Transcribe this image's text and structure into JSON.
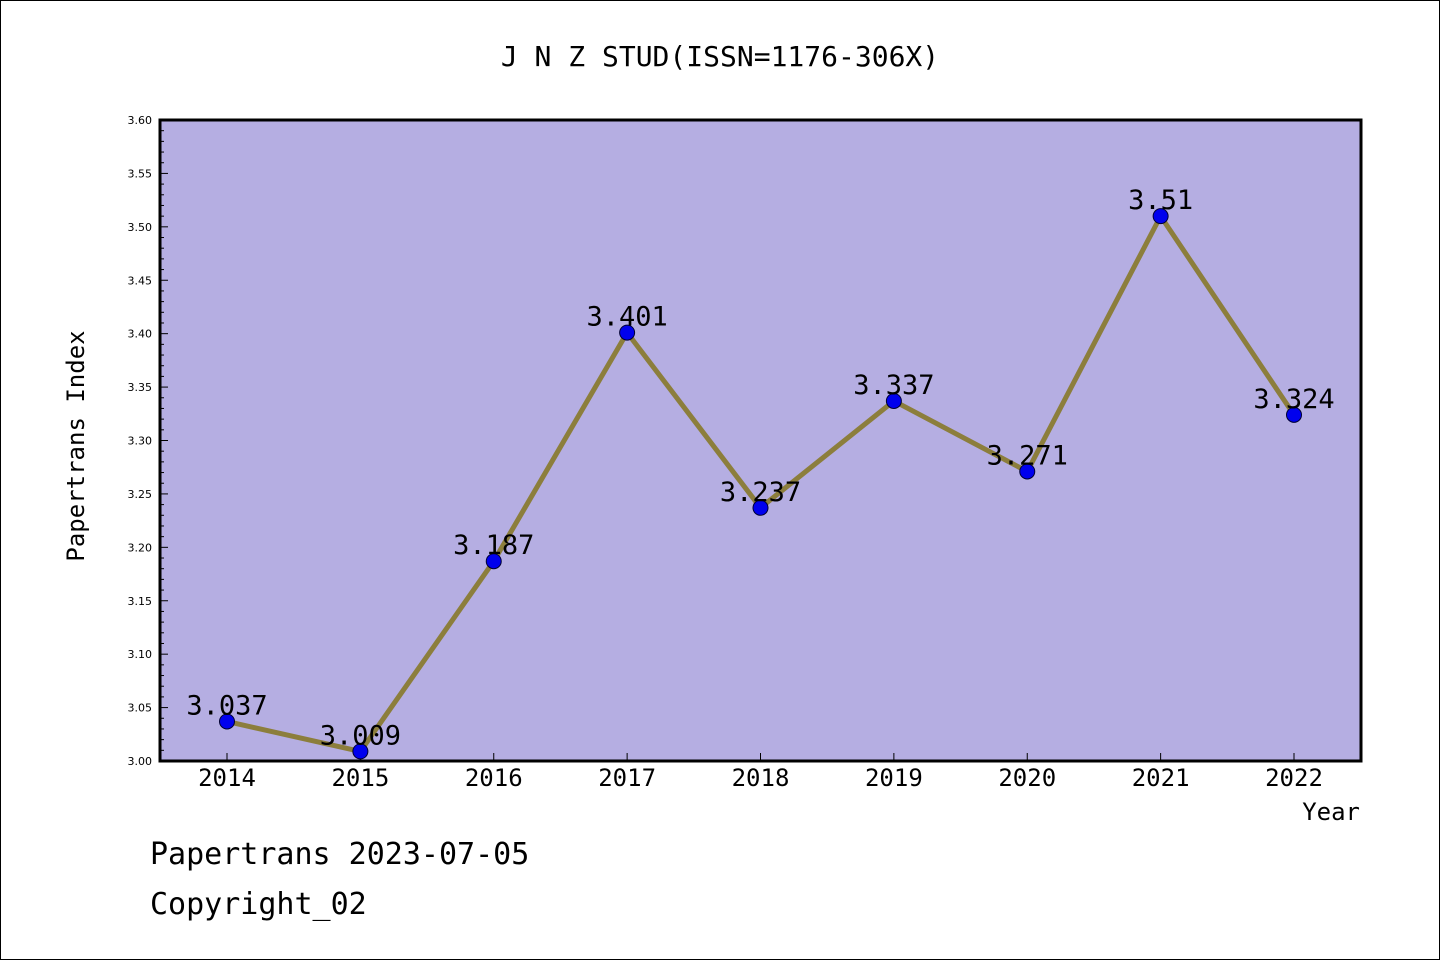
{
  "chart_data": {
    "type": "line",
    "title": "J N Z STUD(ISSN=1176-306X)",
    "xlabel": "Year",
    "ylabel": "Papertrans Index",
    "categories": [
      "2014",
      "2015",
      "2016",
      "2017",
      "2018",
      "2019",
      "2020",
      "2021",
      "2022"
    ],
    "values": [
      3.037,
      3.009,
      3.187,
      3.401,
      3.237,
      3.337,
      3.271,
      3.51,
      3.324
    ],
    "data_labels": [
      "3.037",
      "3.009",
      "3.187",
      "3.401",
      "3.237",
      "3.337",
      "3.271",
      "3.51",
      "3.324"
    ],
    "ylim": [
      3.0,
      3.6
    ],
    "yticks": [
      "3.00",
      "3.05",
      "3.10",
      "3.15",
      "3.20",
      "3.25",
      "3.30",
      "3.35",
      "3.40",
      "3.45",
      "3.50",
      "3.55",
      "3.60"
    ],
    "grid": false,
    "legend": "none",
    "colors": {
      "plot_background": "#b5aee2",
      "line": "#8c7e3c",
      "marker": "#0000ee"
    }
  },
  "footer": {
    "line1": "Papertrans 2023-07-05",
    "line2": "Copyright_02"
  }
}
